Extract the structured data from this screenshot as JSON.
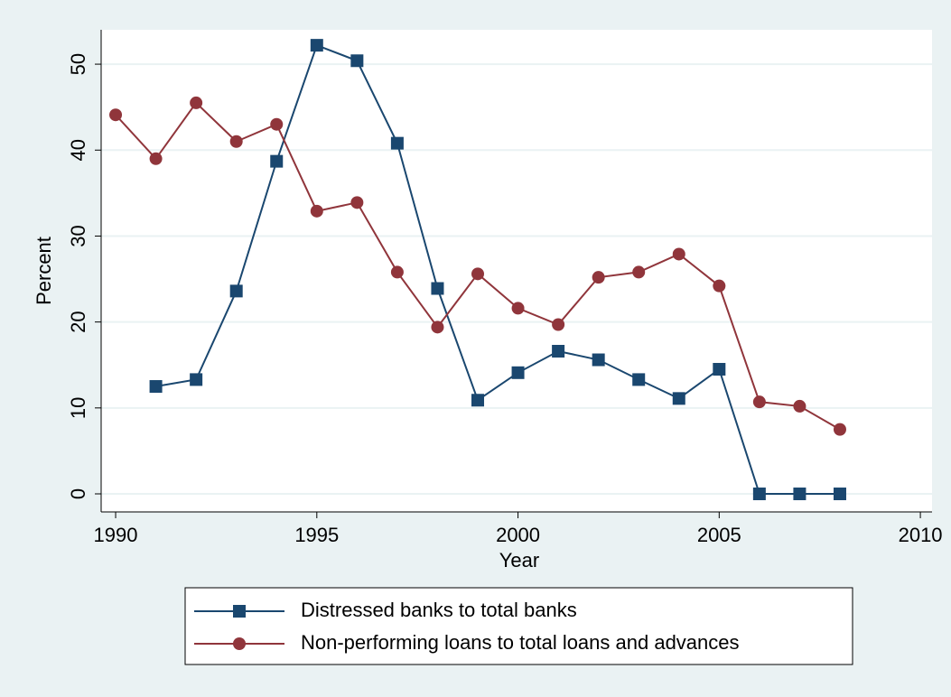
{
  "chart_data": {
    "type": "line",
    "x_label": "Year",
    "y_label": "Percent",
    "x": [
      1990,
      1991,
      1992,
      1993,
      1994,
      1995,
      1996,
      1997,
      1998,
      1999,
      2000,
      2001,
      2002,
      2003,
      2004,
      2005,
      2006,
      2007,
      2008
    ],
    "series": [
      {
        "name": "Distressed banks to total banks",
        "color": "#1a476f",
        "marker": "square",
        "values": [
          null,
          12.5,
          13.3,
          23.6,
          38.7,
          52.2,
          50.4,
          40.8,
          23.9,
          10.9,
          14.1,
          16.6,
          15.6,
          13.3,
          11.1,
          14.5,
          0,
          0,
          0
        ]
      },
      {
        "name": "Non-performing loans to total loans and advances",
        "color": "#90353b",
        "marker": "circle",
        "values": [
          44.1,
          39.0,
          45.5,
          41.0,
          43.0,
          32.9,
          33.9,
          25.8,
          19.4,
          25.6,
          21.6,
          19.7,
          25.2,
          25.8,
          27.9,
          24.2,
          10.7,
          10.2,
          7.5
        ]
      }
    ],
    "xlim": [
      1989.64,
      2010.29
    ],
    "xticks": [
      1990,
      1995,
      2000,
      2005,
      2010
    ],
    "ylim": [
      -2.1,
      54
    ],
    "yticks": [
      0,
      10,
      20,
      30,
      40,
      50
    ],
    "grid": true,
    "legend": "bottom"
  }
}
